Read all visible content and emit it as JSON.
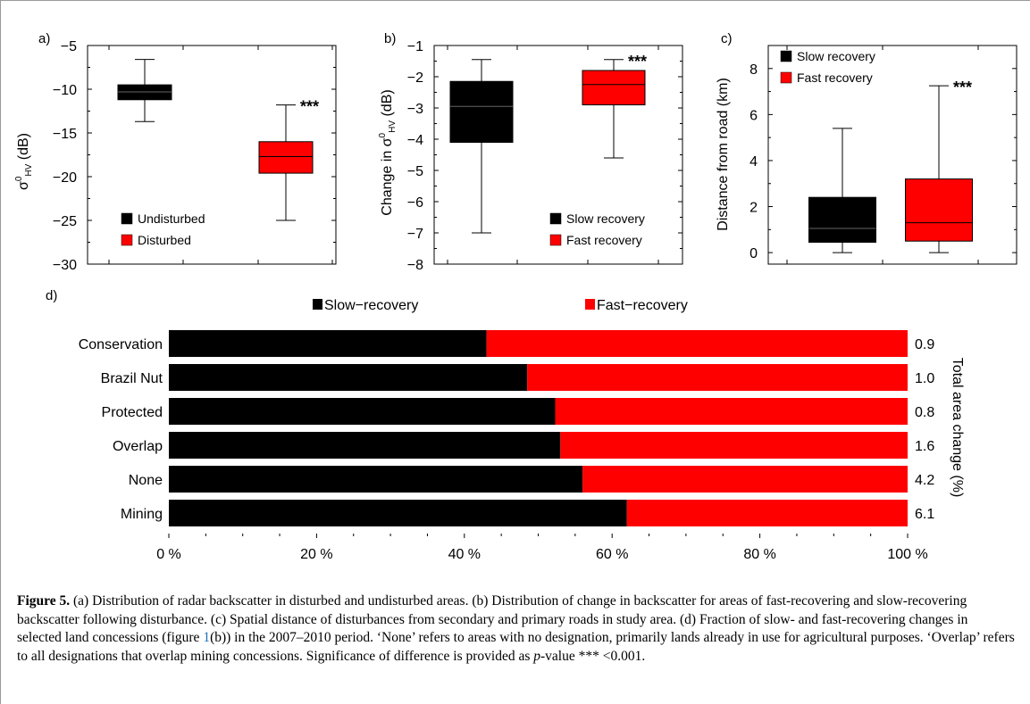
{
  "chart_data": [
    {
      "type": "box",
      "panel_label": "a)",
      "ylabel": "σ⁰HV (dB)",
      "ylim": [
        -30,
        -5
      ],
      "yticks": [
        -30,
        -25,
        -20,
        -15,
        -10,
        -5
      ],
      "legend_placement": "bottom-left",
      "series": [
        {
          "name": "Undisturbed",
          "color": "#000000",
          "whisker_low": -13.7,
          "q1": -11.2,
          "median": -10.3,
          "q3": -9.5,
          "whisker_high": -6.6
        },
        {
          "name": "Disturbed",
          "color": "#ff0000",
          "whisker_low": -25.0,
          "q1": -19.6,
          "median": -17.7,
          "q3": -16.0,
          "whisker_high": -11.8,
          "significance": "***"
        }
      ]
    },
    {
      "type": "box",
      "panel_label": "b)",
      "ylabel": "Change in σ⁰HV (dB)",
      "ylim": [
        -8,
        -1
      ],
      "yticks": [
        -8,
        -7,
        -6,
        -5,
        -4,
        -3,
        -2,
        -1
      ],
      "legend_placement": "bottom-right",
      "series": [
        {
          "name": "Slow recovery",
          "color": "#000000",
          "whisker_low": -7.0,
          "q1": -4.1,
          "median": -2.95,
          "q3": -2.15,
          "whisker_high": -1.45
        },
        {
          "name": "Fast recovery",
          "color": "#ff0000",
          "whisker_low": -4.6,
          "q1": -2.9,
          "median": -2.25,
          "q3": -1.8,
          "whisker_high": -1.45,
          "significance": "***"
        }
      ]
    },
    {
      "type": "box",
      "panel_label": "c)",
      "ylabel": "Distance from road (km)",
      "ylim": [
        -0.5,
        9
      ],
      "yticks": [
        0,
        2,
        4,
        6,
        8
      ],
      "legend_placement": "top-left",
      "series": [
        {
          "name": "Slow recovery",
          "color": "#000000",
          "whisker_low": 0.0,
          "q1": 0.45,
          "median": 1.05,
          "q3": 2.4,
          "whisker_high": 5.4
        },
        {
          "name": "Fast recovery",
          "color": "#ff0000",
          "whisker_low": 0.0,
          "q1": 0.5,
          "median": 1.3,
          "q3": 3.2,
          "whisker_high": 7.25,
          "significance": "***"
        }
      ]
    },
    {
      "type": "bar",
      "orientation": "horizontal",
      "stacked": true,
      "panel_label": "d)",
      "categories": [
        "Conservation",
        "Brazil Nut",
        "Protected",
        "Overlap",
        "None",
        "Mining"
      ],
      "series": [
        {
          "name": "Slow−recovery",
          "color": "#000000",
          "values": [
            43,
            48.5,
            52.3,
            53,
            56,
            62
          ]
        },
        {
          "name": "Fast−recovery",
          "color": "#ff0000",
          "values": [
            57,
            51.5,
            47.7,
            47,
            44,
            38
          ]
        }
      ],
      "right_values": [
        "0.9",
        "1.0",
        "0.8",
        "1.6",
        "4.2",
        "6.1"
      ],
      "right_axis_label": "Total area change (%)",
      "xtick_labels": [
        "0 %",
        "20 %",
        "40 %",
        "60 %",
        "80 %",
        "100 %"
      ],
      "xlim": [
        0,
        100
      ],
      "legend_placement": "top"
    }
  ],
  "caption": {
    "label": "Figure 5.",
    "part1": " (a) Distribution of radar backscatter in disturbed and undisturbed areas. (b) Distribution of change in backscatter for areas of fast-recovering and slow-recovering backscatter following disturbance. (c) Spatial distance of disturbances from secondary and primary roads in study area. (d) Fraction of slow- and fast-recovering changes in selected land concessions (figure ",
    "ref": "1",
    "part2": "(b)) in the 2007–2010 period. ‘None’ refers to areas with no designation, primarily lands already in use for agricultural purposes. ‘Overlap’ refers to all designations that overlap mining concessions. Significance of difference is provided as ",
    "pvalue_label": "p",
    "part3": "-value *** <0.001."
  }
}
